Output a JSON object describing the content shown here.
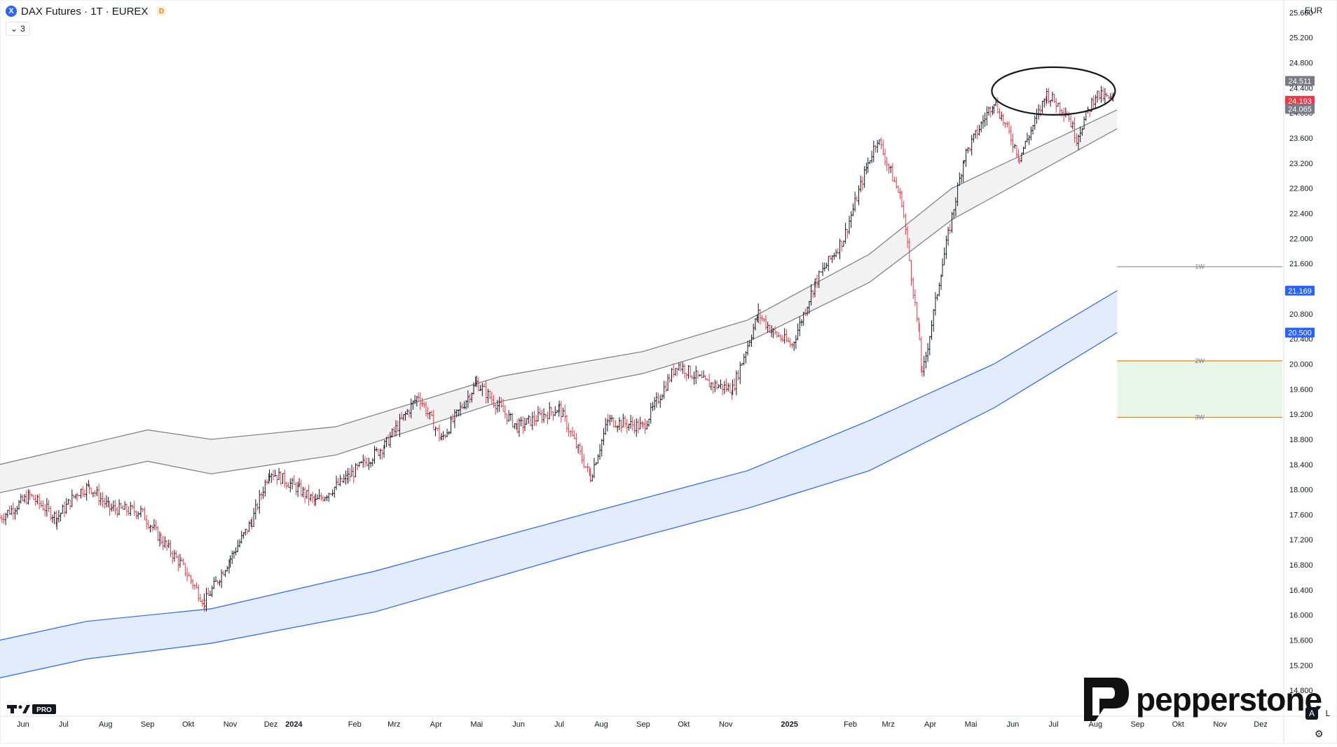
{
  "header": {
    "symbol_badge": "X",
    "title": "DAX Futures · 1T · EUREX",
    "d_badge": "D",
    "indicator_toggle": "3",
    "currency": "EUR"
  },
  "brand": {
    "name": "pepperstone",
    "tv_logo": "TV PRO"
  },
  "controls": {
    "auto_scale": "A",
    "log_scale": "L",
    "settings_icon": "gear-icon"
  },
  "colors": {
    "up": "#131722",
    "down": "#f23645",
    "blue_band": "#2962ff",
    "gray_band": "#787b86",
    "orange_level": "#f57c00",
    "green_zone": "#e8f5e9"
  },
  "chart_data": {
    "type": "candlestick",
    "title": "DAX Futures · 1T · EUREX",
    "currency": "EUR",
    "ylim": [
      14400,
      25800
    ],
    "y_ticks": [
      14800,
      15200,
      15600,
      16000,
      16400,
      16800,
      17200,
      17600,
      18000,
      18400,
      18800,
      19200,
      19600,
      20000,
      20400,
      20800,
      21200,
      21600,
      22000,
      22400,
      22800,
      23200,
      23600,
      24000,
      24400,
      24800,
      25200,
      25600
    ],
    "y_tick_labels": [
      "14.800",
      "15.200",
      "15.600",
      "16.000",
      "16.400",
      "16.800",
      "17.200",
      "17.600",
      "18.000",
      "18.400",
      "18.800",
      "19.200",
      "19.600",
      "20.000",
      "20.400",
      "20.800",
      "21.200",
      "21.600",
      "22.000",
      "22.400",
      "22.800",
      "23.200",
      "23.600",
      "24.000",
      "24.400",
      "24.800",
      "25.200",
      "25.600"
    ],
    "x_labels": [
      {
        "date": "2023-06-15",
        "text": "Jun"
      },
      {
        "date": "2023-07-15",
        "text": "Jul"
      },
      {
        "date": "2023-08-15",
        "text": "Aug"
      },
      {
        "date": "2023-09-15",
        "text": "Sep"
      },
      {
        "date": "2023-10-15",
        "text": "Okt"
      },
      {
        "date": "2023-11-15",
        "text": "Nov"
      },
      {
        "date": "2023-12-15",
        "text": "Dez"
      },
      {
        "date": "2024-01-01",
        "text": "2024",
        "bold": true
      },
      {
        "date": "2024-02-15",
        "text": "Feb"
      },
      {
        "date": "2024-03-15",
        "text": "Mrz"
      },
      {
        "date": "2024-04-15",
        "text": "Apr"
      },
      {
        "date": "2024-05-15",
        "text": "Mai"
      },
      {
        "date": "2024-06-15",
        "text": "Jun"
      },
      {
        "date": "2024-07-15",
        "text": "Jul"
      },
      {
        "date": "2024-08-15",
        "text": "Aug"
      },
      {
        "date": "2024-09-15",
        "text": "Sep"
      },
      {
        "date": "2024-10-15",
        "text": "Okt"
      },
      {
        "date": "2024-11-15",
        "text": "Nov"
      },
      {
        "date": "2025-01-01",
        "text": "2025",
        "bold": true
      },
      {
        "date": "2025-02-15",
        "text": "Feb"
      },
      {
        "date": "2025-03-15",
        "text": "Mrz"
      },
      {
        "date": "2025-04-15",
        "text": "Apr"
      },
      {
        "date": "2025-05-15",
        "text": "Mai"
      },
      {
        "date": "2025-06-15",
        "text": "Jun"
      },
      {
        "date": "2025-07-15",
        "text": "Jul"
      },
      {
        "date": "2025-08-15",
        "text": "Aug"
      },
      {
        "date": "2025-09-15",
        "text": "Sep"
      },
      {
        "date": "2025-10-15",
        "text": "Okt"
      },
      {
        "date": "2025-11-15",
        "text": "Nov"
      },
      {
        "date": "2025-12-15",
        "text": "Dez"
      }
    ],
    "price_path": [
      {
        "date": "2023-05-29",
        "value": 17550
      },
      {
        "date": "2023-06-20",
        "value": 17900
      },
      {
        "date": "2023-07-10",
        "value": 17550
      },
      {
        "date": "2023-07-25",
        "value": 17950
      },
      {
        "date": "2023-08-03",
        "value": 18050
      },
      {
        "date": "2023-08-18",
        "value": 17700
      },
      {
        "date": "2023-09-10",
        "value": 17650
      },
      {
        "date": "2023-09-25",
        "value": 17200
      },
      {
        "date": "2023-10-10",
        "value": 16800
      },
      {
        "date": "2023-10-27",
        "value": 16200
      },
      {
        "date": "2023-11-15",
        "value": 16900
      },
      {
        "date": "2023-12-01",
        "value": 17500
      },
      {
        "date": "2023-12-14",
        "value": 18300
      },
      {
        "date": "2024-01-05",
        "value": 18000
      },
      {
        "date": "2024-01-17",
        "value": 17800
      },
      {
        "date": "2024-02-10",
        "value": 18200
      },
      {
        "date": "2024-03-08",
        "value": 18700
      },
      {
        "date": "2024-04-02",
        "value": 19500
      },
      {
        "date": "2024-04-19",
        "value": 18800
      },
      {
        "date": "2024-05-15",
        "value": 19700
      },
      {
        "date": "2024-06-14",
        "value": 19000
      },
      {
        "date": "2024-07-15",
        "value": 19300
      },
      {
        "date": "2024-08-07",
        "value": 18200
      },
      {
        "date": "2024-08-20",
        "value": 19100
      },
      {
        "date": "2024-09-15",
        "value": 19000
      },
      {
        "date": "2024-10-10",
        "value": 20000
      },
      {
        "date": "2024-10-31",
        "value": 19700
      },
      {
        "date": "2024-11-20",
        "value": 19600
      },
      {
        "date": "2024-12-09",
        "value": 20800
      },
      {
        "date": "2024-12-20",
        "value": 20500
      },
      {
        "date": "2025-01-03",
        "value": 20300
      },
      {
        "date": "2025-01-20",
        "value": 21300
      },
      {
        "date": "2025-02-10",
        "value": 22000
      },
      {
        "date": "2025-02-28",
        "value": 23200
      },
      {
        "date": "2025-03-07",
        "value": 23600
      },
      {
        "date": "2025-03-25",
        "value": 22600
      },
      {
        "date": "2025-04-07",
        "value": 20400
      },
      {
        "date": "2025-04-09",
        "value": 19800
      },
      {
        "date": "2025-04-24",
        "value": 21600
      },
      {
        "date": "2025-05-10",
        "value": 23300
      },
      {
        "date": "2025-06-01",
        "value": 24200
      },
      {
        "date": "2025-06-20",
        "value": 23300
      },
      {
        "date": "2025-07-10",
        "value": 24300
      },
      {
        "date": "2025-07-25",
        "value": 24000
      },
      {
        "date": "2025-08-01",
        "value": 23600
      },
      {
        "date": "2025-08-15",
        "value": 24300
      },
      {
        "date": "2025-08-28",
        "value": 24193
      }
    ],
    "bands": [
      {
        "name": "",
        "color": "#787b86",
        "fill": "#f2f2f2",
        "points": [
          {
            "date": "2023-05-29",
            "upper": 18400,
            "lower": 17950
          },
          {
            "date": "2023-09-15",
            "upper": 18950,
            "lower": 18450
          },
          {
            "date": "2023-11-01",
            "upper": 18800,
            "lower": 18250
          },
          {
            "date": "2024-02-01",
            "upper": 19000,
            "lower": 18550
          },
          {
            "date": "2024-06-01",
            "upper": 19800,
            "lower": 19400
          },
          {
            "date": "2024-09-15",
            "upper": 20200,
            "lower": 19850
          },
          {
            "date": "2024-12-01",
            "upper": 20700,
            "lower": 20350
          },
          {
            "date": "2025-03-01",
            "upper": 21750,
            "lower": 21300
          },
          {
            "date": "2025-05-01",
            "upper": 22800,
            "lower": 22300
          },
          {
            "date": "2025-08-31",
            "upper": 24050,
            "lower": 23750
          }
        ]
      },
      {
        "name": "",
        "color": "#2962ff",
        "fill": "#e3ecfd",
        "points": [
          {
            "date": "2023-05-29",
            "upper": 15600,
            "lower": 15000
          },
          {
            "date": "2023-08-01",
            "upper": 15900,
            "lower": 15300
          },
          {
            "date": "2023-11-01",
            "upper": 16100,
            "lower": 15550
          },
          {
            "date": "2024-03-01",
            "upper": 16700,
            "lower": 16050
          },
          {
            "date": "2024-08-01",
            "upper": 17600,
            "lower": 17000
          },
          {
            "date": "2024-12-01",
            "upper": 18300,
            "lower": 17700
          },
          {
            "date": "2025-03-01",
            "upper": 19100,
            "lower": 18300
          },
          {
            "date": "2025-06-01",
            "upper": 20000,
            "lower": 19300
          },
          {
            "date": "2025-08-31",
            "upper": 21169,
            "lower": 20500
          }
        ]
      }
    ],
    "levels": [
      {
        "label": "1W",
        "value": 21550,
        "style": "solid",
        "color": "#9598a1",
        "from": "2025-08-31"
      },
      {
        "label": "2W",
        "value": 20050,
        "style": "solid",
        "color": "#f57c00",
        "from": "2025-08-31"
      },
      {
        "label": "3W",
        "value": 19150,
        "style": "solid",
        "color": "#f57c00",
        "from": "2025-08-31"
      }
    ],
    "green_zone": {
      "from": "2025-08-31",
      "top": 20050,
      "bottom": 19150
    },
    "highlight_ellipse": {
      "date": "2025-07-15",
      "center_value": 24350
    },
    "price_labels": [
      {
        "value": 24511,
        "text": "24.511",
        "bg": "#787b86",
        "color": "#ffffff"
      },
      {
        "value": 24193,
        "text": "24.193",
        "bg": "#f23645",
        "color": "#ffffff"
      },
      {
        "value": 24065,
        "text": "24.065",
        "bg": "#787b86",
        "color": "#ffffff"
      },
      {
        "value": 21169,
        "text": "21.169",
        "bg": "#2962ff",
        "color": "#ffffff"
      },
      {
        "value": 20500,
        "text": "20.500",
        "bg": "#2962ff",
        "color": "#ffffff"
      }
    ]
  }
}
